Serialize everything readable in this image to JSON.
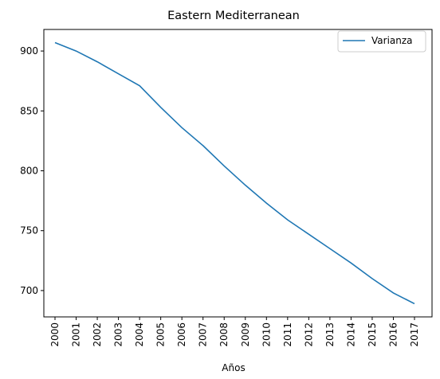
{
  "chart_data": {
    "type": "line",
    "title": "Eastern Mediterranean",
    "xlabel": "Años",
    "ylabel": "",
    "categories": [
      "2000",
      "2001",
      "2002",
      "2003",
      "2004",
      "2005",
      "2006",
      "2007",
      "2008",
      "2009",
      "2010",
      "2011",
      "2012",
      "2013",
      "2014",
      "2015",
      "2016",
      "2017"
    ],
    "series": [
      {
        "name": "Varianza",
        "color": "#1f77b4",
        "values": [
          907,
          900,
          891,
          881,
          871,
          853,
          836,
          821,
          804,
          788,
          773,
          759,
          747,
          735,
          723,
          710,
          698,
          689
        ]
      }
    ],
    "yticks": [
      700,
      750,
      800,
      850,
      900
    ],
    "ylim": [
      678,
      918
    ],
    "grid": false,
    "legend_position": "top-right"
  }
}
